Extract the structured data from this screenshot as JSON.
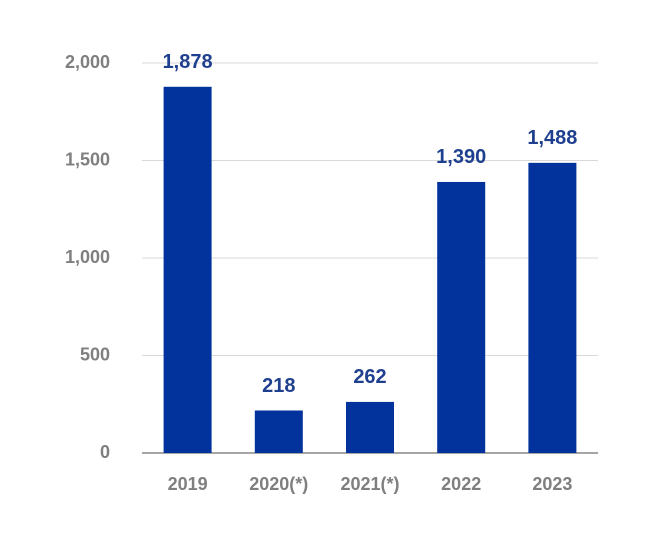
{
  "chart_data": {
    "type": "bar",
    "categories": [
      "2019",
      "2020(*)",
      "2021(*)",
      "2022",
      "2023"
    ],
    "values": [
      1878,
      218,
      262,
      1390,
      1488
    ],
    "value_labels": [
      "1,878",
      "218",
      "262",
      "1,390",
      "1,488"
    ],
    "color": "#02339c",
    "ylim": [
      0,
      2000
    ],
    "yticks": [
      0,
      500,
      {
        "value": 1000,
        "label": "1,000"
      },
      {
        "value": 1500,
        "label": "1,500"
      },
      {
        "value": 2000,
        "label": "2,000"
      }
    ],
    "grid": true
  }
}
